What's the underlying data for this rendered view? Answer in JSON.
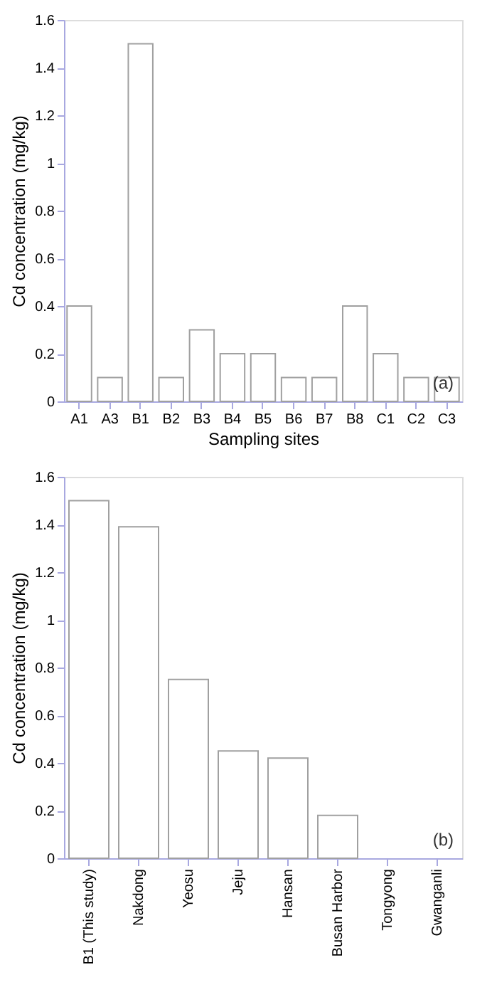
{
  "chart_data": [
    {
      "type": "bar",
      "xlabel": "Sampling sites",
      "ylabel": "Cd concentration (mg/kg)",
      "categories": [
        "A1",
        "A3",
        "B1",
        "B2",
        "B3",
        "B4",
        "B5",
        "B6",
        "B7",
        "B8",
        "C1",
        "C2",
        "C3"
      ],
      "values": [
        0.4,
        0.1,
        1.5,
        0.1,
        0.3,
        0.2,
        0.2,
        0.1,
        0.1,
        0.4,
        0.2,
        0.1,
        0.1
      ],
      "color": "#ffffff",
      "ylim": [
        0,
        1.6
      ],
      "yticks": [
        0,
        0.2,
        0.4,
        0.6,
        0.8,
        1,
        1.2,
        1.4,
        1.6
      ],
      "grid": false,
      "annotations": [
        "(a)"
      ]
    },
    {
      "type": "bar",
      "ylabel": "Cd concentration (mg/kg)",
      "categories": [
        "B1 (This study)",
        "Nakdong",
        "Yeosu",
        "Jeju",
        "Hansan",
        "Busan Harbor",
        "Tongyong",
        "Gwanganli"
      ],
      "values": [
        1.5,
        1.39,
        0.75,
        0.45,
        0.42,
        0.18,
        0,
        0
      ],
      "color": "#ffffff",
      "ylim": [
        0,
        1.6
      ],
      "yticks": [
        0,
        0.2,
        0.4,
        0.6,
        0.8,
        1,
        1.2,
        1.4,
        1.6
      ],
      "grid": false,
      "annotations": [
        "(b)"
      ]
    }
  ]
}
